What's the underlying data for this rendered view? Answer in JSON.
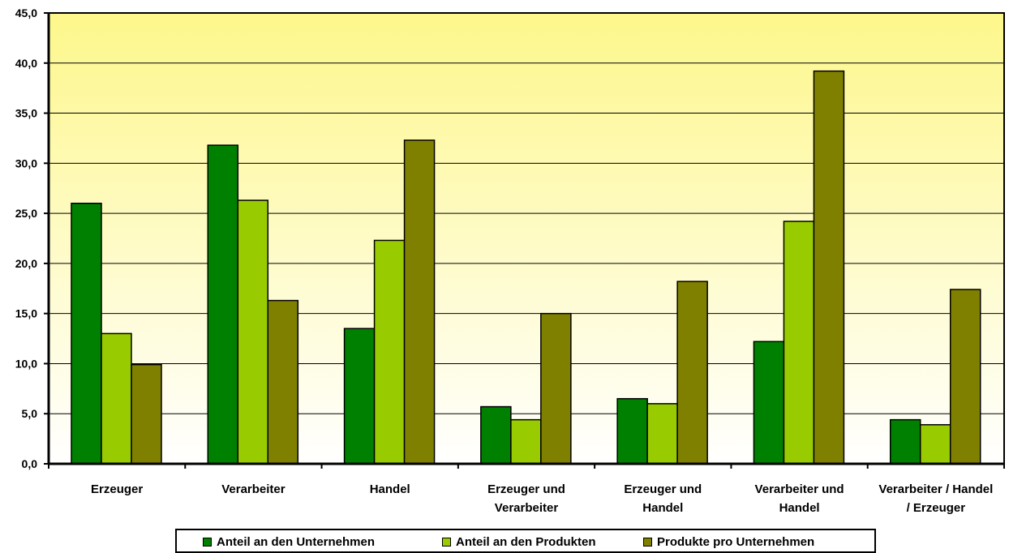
{
  "colors": {
    "series1": "#008000",
    "series2": "#99cc00",
    "series3": "#808000",
    "plot_top": "#fdf78b",
    "plot_bottom": "#ffffff"
  },
  "chart_data": {
    "type": "bar",
    "categories": [
      [
        "Erzeuger"
      ],
      [
        "Verarbeiter"
      ],
      [
        "Handel"
      ],
      [
        "Erzeuger und",
        "Verarbeiter"
      ],
      [
        "Erzeuger und",
        "Handel"
      ],
      [
        "Verarbeiter und",
        "Handel"
      ],
      [
        "Verarbeiter / Handel",
        "/ Erzeuger"
      ]
    ],
    "series": [
      {
        "name": "Anteil an den Unternehmen",
        "values": [
          26.0,
          31.8,
          13.5,
          5.7,
          6.5,
          12.2,
          4.4
        ]
      },
      {
        "name": "Anteil an den Produkten",
        "values": [
          13.0,
          26.3,
          22.3,
          4.4,
          6.0,
          24.2,
          3.9
        ]
      },
      {
        "name": "Produkte pro Unternehmen",
        "values": [
          9.9,
          16.3,
          32.3,
          15.0,
          18.2,
          39.2,
          17.4
        ]
      }
    ],
    "yticks": [
      "0,0",
      "5,0",
      "10,0",
      "15,0",
      "20,0",
      "25,0",
      "30,0",
      "35,0",
      "40,0",
      "45,0"
    ],
    "ylim": [
      0,
      45
    ],
    "grid": true,
    "legend_position": "bottom"
  }
}
